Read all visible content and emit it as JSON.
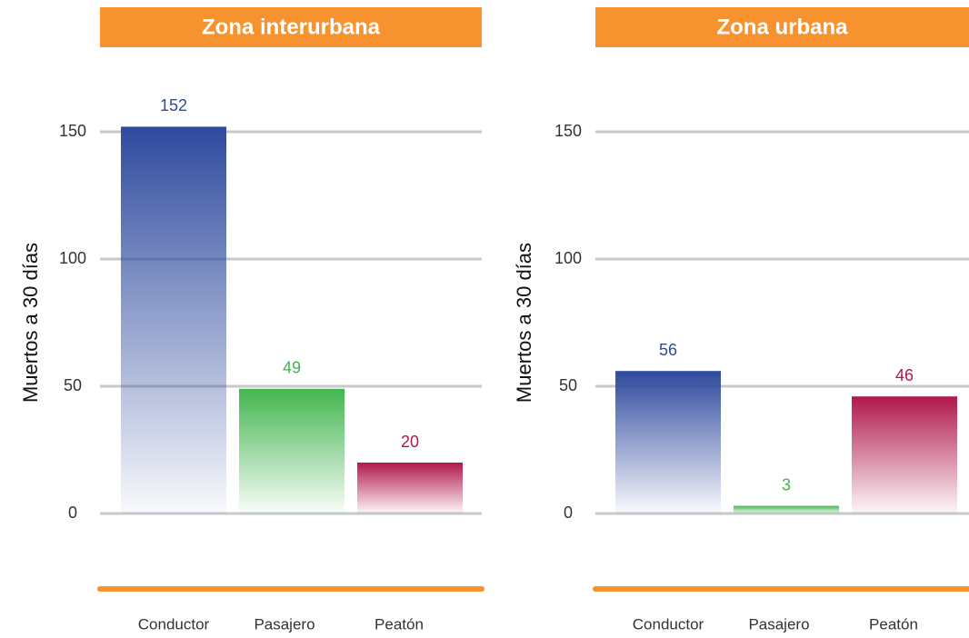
{
  "chart_data": [
    {
      "type": "bar",
      "title": "Zona interurbana",
      "y_label": "Muertos a 30 días",
      "categories": [
        "Conductor",
        "Pasajero",
        "Peatón"
      ],
      "values": [
        152,
        49,
        20
      ],
      "colors": [
        "#2e4a9e",
        "#43b54f",
        "#b0184a"
      ],
      "ylim": [
        0,
        150
      ],
      "yticks": [
        0,
        50,
        100,
        150
      ],
      "grid": true
    },
    {
      "type": "bar",
      "title": "Zona urbana",
      "y_label": "Muertos a 30 días",
      "categories": [
        "Conductor",
        "Pasajero",
        "Peatón"
      ],
      "values": [
        56,
        3,
        46
      ],
      "colors": [
        "#2e4a9e",
        "#43b54f",
        "#b0184a"
      ],
      "ylim": [
        0,
        150
      ],
      "yticks": [
        0,
        50,
        100,
        150
      ],
      "grid": true
    }
  ]
}
